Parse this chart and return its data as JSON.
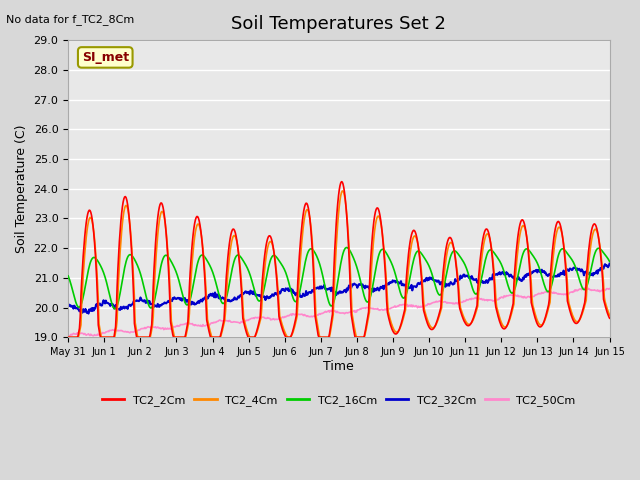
{
  "title": "Soil Temperatures Set 2",
  "subtitle": "No data for f_TC2_8Cm",
  "ylabel": "Soil Temperature (C)",
  "xlabel": "Time",
  "ylim": [
    19.0,
    29.0
  ],
  "yticks": [
    19.0,
    20.0,
    21.0,
    22.0,
    23.0,
    24.0,
    25.0,
    26.0,
    27.0,
    28.0,
    29.0
  ],
  "xtick_labels": [
    "May 31",
    "Jun 1",
    "Jun 2",
    "Jun 3",
    "Jun 4",
    "Jun 5",
    "Jun 6",
    "Jun 7",
    "Jun 8",
    "Jun 9",
    "Jun 10",
    "Jun 11",
    "Jun 12",
    "Jun 13",
    "Jun 14",
    "Jun 15"
  ],
  "n_xticks": 16,
  "colors": {
    "TC2_2Cm": "#ff0000",
    "TC2_4Cm": "#ff8800",
    "TC2_16Cm": "#00cc00",
    "TC2_32Cm": "#0000cc",
    "TC2_50Cm": "#ff88cc"
  },
  "bg_color": "#e8e8e8",
  "grid_color": "#ffffff",
  "fig_bg": "#d8d8d8",
  "annotation_box": {
    "text": "SI_met",
    "bg": "#ffffcc",
    "border": "#999900",
    "text_color": "#880000"
  }
}
